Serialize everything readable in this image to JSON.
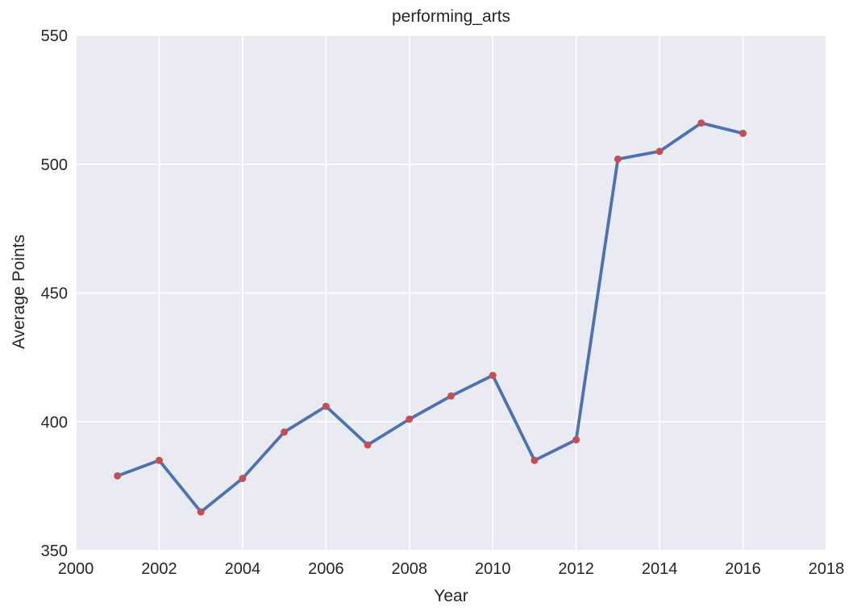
{
  "chart_data": {
    "type": "line",
    "title": "performing_arts",
    "xlabel": "Year",
    "ylabel": "Average Points",
    "x": [
      2001,
      2002,
      2003,
      2004,
      2005,
      2006,
      2007,
      2008,
      2009,
      2010,
      2011,
      2012,
      2013,
      2014,
      2015,
      2016
    ],
    "y": [
      379,
      385,
      365,
      378,
      396,
      406,
      391,
      401,
      410,
      418,
      385,
      393,
      502,
      505,
      516,
      512
    ],
    "xlim": [
      2000,
      2018
    ],
    "ylim": [
      350,
      550
    ],
    "xticks": [
      2000,
      2002,
      2004,
      2006,
      2008,
      2010,
      2012,
      2014,
      2016,
      2018
    ],
    "yticks": [
      350,
      400,
      450,
      500,
      550
    ],
    "grid": true,
    "legend": "none",
    "styles": {
      "line_color": "#4c72b0",
      "marker_color": "#c44e52",
      "plot_bg": "#eaeaf2",
      "grid_color": "#ffffff",
      "text_color": "#262626",
      "figure_bg": "#ffffff"
    }
  }
}
